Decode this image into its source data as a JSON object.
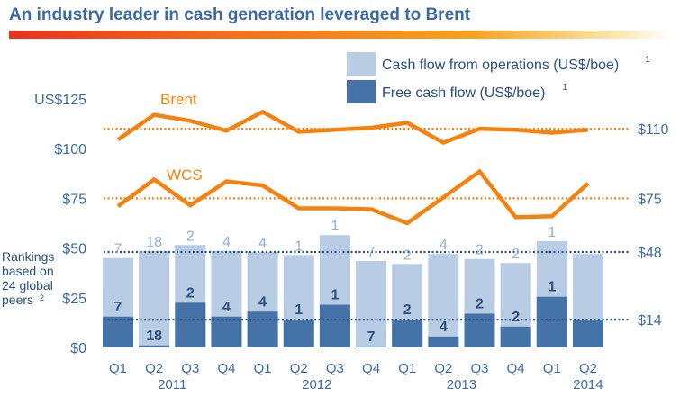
{
  "title": "An industry leader in cash generation leveraged to Brent",
  "chart_data": {
    "type": "bar+line",
    "ylim": [
      0,
      125
    ],
    "yticks": [
      "$0",
      "$25",
      "$50",
      "$75",
      "$100",
      "US$125"
    ],
    "ytick_values": [
      0,
      25,
      50,
      75,
      100,
      125
    ],
    "categories": [
      "Q1",
      "Q2",
      "Q3",
      "Q4",
      "Q1",
      "Q2",
      "Q3",
      "Q4",
      "Q1",
      "Q2",
      "Q3",
      "Q4",
      "Q1",
      "Q2"
    ],
    "years": [
      {
        "label": "2011",
        "index": 1.5
      },
      {
        "label": "2012",
        "index": 5.5
      },
      {
        "label": "2013",
        "index": 9.5
      },
      {
        "label": "2014",
        "index": 13
      }
    ],
    "legend": [
      {
        "label": "Cash flow from operations (US$/boe)",
        "sup": "1",
        "color": "#b8cce4"
      },
      {
        "label": "Free cash flow (US$/boe)",
        "sup": "1",
        "color": "#4572a7"
      }
    ],
    "series": [
      {
        "name": "Cash flow from operations (US$/boe)",
        "type": "bar",
        "color": "#b8cce4",
        "values": [
          45,
          48.5,
          51.5,
          48.5,
          48,
          46.5,
          56.5,
          43.5,
          42,
          47,
          44.5,
          42.5,
          53.5,
          47
        ],
        "rankings": [
          "7",
          "18",
          "2",
          "4",
          "4",
          "1",
          "1",
          "7",
          "2",
          "4",
          "2",
          "2",
          "1",
          ""
        ]
      },
      {
        "name": "Free cash flow (US$/boe)",
        "type": "bar",
        "color": "#4572a7",
        "values": [
          15.5,
          1,
          22.5,
          15.5,
          18,
          14,
          21.5,
          0.5,
          14,
          5.5,
          17,
          10.5,
          25.5,
          14
        ],
        "rankings": [
          "7",
          "18",
          "2",
          "4",
          "4",
          "1",
          "1",
          "7",
          "2",
          "4",
          "2",
          "2",
          "1",
          ""
        ]
      },
      {
        "name": "Brent",
        "type": "line",
        "color": "#f5820f",
        "values": [
          104.5,
          117,
          114,
          109,
          118.5,
          108.5,
          109.5,
          110.5,
          113,
          103,
          110,
          109.5,
          108,
          109.5
        ]
      },
      {
        "name": "WCS",
        "type": "line",
        "color": "#f5820f",
        "values": [
          71,
          84.5,
          71.5,
          83.5,
          81.5,
          70,
          70,
          69.5,
          62.5,
          75.5,
          88.5,
          65.5,
          66,
          82.5
        ]
      }
    ],
    "reference_lines": [
      {
        "value": 110,
        "label": "$110",
        "color": "#f5820f"
      },
      {
        "value": 75,
        "label": "$75",
        "color": "#f5820f"
      },
      {
        "value": 48,
        "label": "$48",
        "color": "#2a4f80"
      },
      {
        "value": 14,
        "label": "$14",
        "color": "#2a4f80"
      }
    ],
    "annotation": {
      "lines": [
        "Rankings",
        "based on",
        "24 global",
        "peers"
      ],
      "sup": "2"
    }
  }
}
